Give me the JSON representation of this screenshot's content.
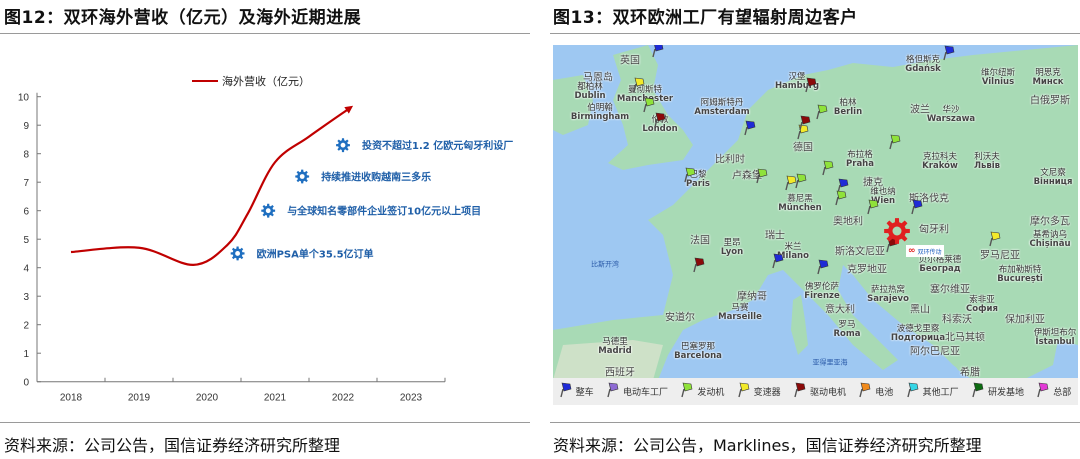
{
  "left": {
    "title": "图12：双环海外营收（亿元）及海外近期进展",
    "source": "资料来源：公司公告，国信证券经济研究所整理"
  },
  "right": {
    "title": "图13：双环欧洲工厂有望辐射周边客户",
    "source": "资料来源：公司公告，Marklines，国信证券经济研究所整理"
  },
  "chart_data": {
    "type": "line",
    "title": "",
    "legend": {
      "position": "top",
      "entries": [
        "海外营收（亿元）"
      ]
    },
    "xlabel": "",
    "ylabel": "",
    "categories": [
      "2018",
      "2019",
      "2020",
      "2021",
      "2022",
      "2023"
    ],
    "ylim": [
      0,
      10
    ],
    "yticks": [
      "0",
      "1",
      "2",
      "3",
      "4",
      "5",
      "6",
      "7",
      "8",
      "9",
      "10"
    ],
    "grid": false,
    "series": [
      {
        "name": "海外营收（亿元）",
        "color": "#c00000",
        "arrow_end": true,
        "points": [
          [
            2018,
            4.55
          ],
          [
            2019,
            4.7
          ],
          [
            2019.8,
            4.1
          ],
          [
            2020.3,
            4.8
          ],
          [
            2020.6,
            5.9
          ],
          [
            2021,
            7.7
          ],
          [
            2021.5,
            8.6
          ],
          [
            2022.1,
            9.6
          ]
        ]
      }
    ],
    "annotations": [
      {
        "text": "欧洲PSA单个35.5亿订单",
        "x": 2020.45,
        "y": 4.5
      },
      {
        "text": "与全球知名零部件企业签订10亿元以上项目",
        "x": 2020.9,
        "y": 6.0
      },
      {
        "text": "持续推进收购越南三多乐",
        "x": 2021.4,
        "y": 7.2
      },
      {
        "text": "投资不超过1.2 亿欧元匈牙利设厂",
        "x": 2022.0,
        "y": 8.3
      }
    ],
    "annotation_icon": "gear-icon",
    "annotation_color": "#1f6fc0"
  },
  "map": {
    "labels": [
      [
        "英国",
        ""
      ],
      [
        "马恩岛",
        ""
      ],
      [
        "都柏林",
        "Dublin"
      ],
      [
        "曼彻斯特",
        "Manchester"
      ],
      [
        "伯明翰",
        "Birmingham"
      ],
      [
        "伦敦",
        "London"
      ],
      [
        "阿姆斯特丹",
        "Amsterdam"
      ],
      [
        "汉堡",
        "Hamburg"
      ],
      [
        "比利时",
        ""
      ],
      [
        "巴黎",
        "Paris"
      ],
      [
        "卢森堡",
        ""
      ],
      [
        "德国",
        ""
      ],
      [
        "格但斯克",
        "Gdańsk"
      ],
      [
        "维尔纽斯",
        "Vilnius"
      ],
      [
        "明思克",
        "Минск"
      ],
      [
        "白俄罗斯",
        ""
      ],
      [
        "柏林",
        "Berlin"
      ],
      [
        "波兰",
        ""
      ],
      [
        "华沙",
        "Warszawa"
      ],
      [
        "布拉格",
        "Praha"
      ],
      [
        "克拉科夫",
        "Kraków"
      ],
      [
        "利沃夫",
        "Львів"
      ],
      [
        "文尼察",
        "Вінниця"
      ],
      [
        "捷克",
        ""
      ],
      [
        "维也纳",
        "Wien"
      ],
      [
        "斯洛伐克",
        ""
      ],
      [
        "慕尼黑",
        "München"
      ],
      [
        "法国",
        ""
      ],
      [
        "里昂",
        "Lyon"
      ],
      [
        "瑞士",
        ""
      ],
      [
        "米兰",
        "Milano"
      ],
      [
        "比斯开湾",
        ""
      ],
      [
        "摩纳哥",
        ""
      ],
      [
        "马赛",
        "Marseille"
      ],
      [
        "安道尔",
        ""
      ],
      [
        "马德里",
        "Madrid"
      ],
      [
        "巴塞罗那",
        "Barcelona"
      ],
      [
        "西班牙",
        ""
      ],
      [
        "奥地利",
        ""
      ],
      [
        "匈牙利",
        ""
      ],
      [
        "斯洛文尼亚",
        ""
      ],
      [
        "克罗地亚",
        ""
      ],
      [
        "贝尔格莱德",
        "Београд"
      ],
      [
        "罗马尼亚",
        ""
      ],
      [
        "布加勒斯特",
        "București"
      ],
      [
        "摩尔多瓦",
        ""
      ],
      [
        "基希讷乌",
        "Chișinău"
      ],
      [
        "萨拉热窝",
        "Sarajevo"
      ],
      [
        "塞尔维亚",
        ""
      ],
      [
        "索非亚",
        "София"
      ],
      [
        "保加利亚",
        ""
      ],
      [
        "意大利",
        ""
      ],
      [
        "罗马",
        "Roma"
      ],
      [
        "黑山",
        ""
      ],
      [
        "科索沃",
        ""
      ],
      [
        "波德戈里察",
        "Подгорица"
      ],
      [
        "北马其顿",
        ""
      ],
      [
        "伊斯坦布尔",
        "İstanbul"
      ],
      [
        "阿尔巴尼亚",
        ""
      ],
      [
        "希腊",
        ""
      ],
      [
        "佛罗伦萨",
        "Firenze"
      ],
      [
        "亚得里亚海",
        ""
      ]
    ],
    "logo_text": "双环传动",
    "hq_marker_icon": "gear-icon",
    "hq_marker_color": "#e02020",
    "legend": [
      {
        "label": "整车",
        "color": "#1f2bd6"
      },
      {
        "label": "电动车工厂",
        "color": "#8e6bd4"
      },
      {
        "label": "发动机",
        "color": "#8fe23a"
      },
      {
        "label": "变速器",
        "color": "#f2ea2a"
      },
      {
        "label": "驱动电机",
        "color": "#8b0a0a"
      },
      {
        "label": "电池",
        "color": "#f08a1c"
      },
      {
        "label": "其他工厂",
        "color": "#35d6e6"
      },
      {
        "label": "研发基地",
        "color": "#0d6b12"
      },
      {
        "label": "总部",
        "color": "#e23ad6"
      }
    ]
  }
}
